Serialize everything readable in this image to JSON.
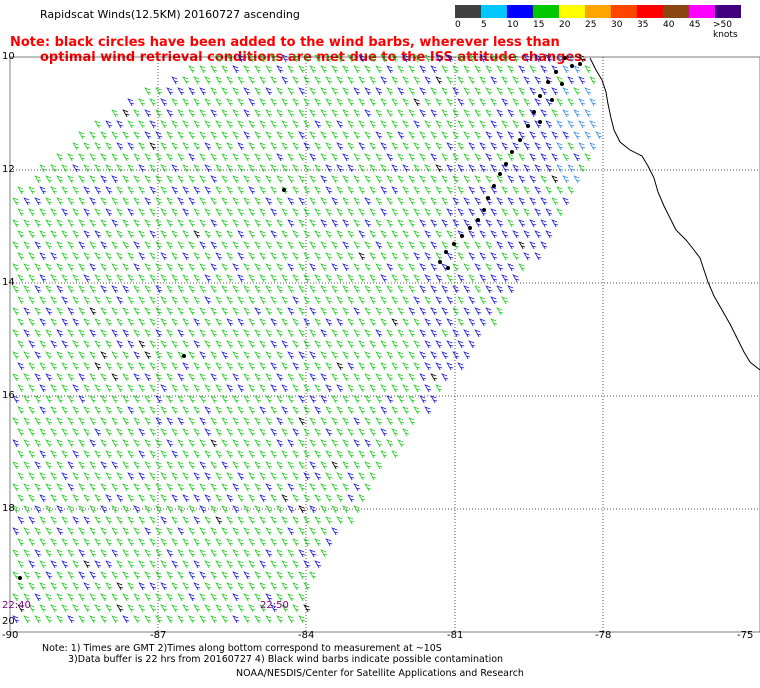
{
  "title": "Rapidscat Winds(12.5KM) 20160727 ascending",
  "note_line1": "Note: black circles have been added to the wind barbs, wherever less than",
  "note_line2": "optimal wind retrieval conditions are met due to the ISS attitude changes.",
  "legend": {
    "labels": [
      "0",
      "5",
      "10",
      "15",
      "20",
      "25",
      "30",
      "35",
      "40",
      "45",
      ">50 knots"
    ],
    "colors": [
      "#404040",
      "#00c8ff",
      "#0000ff",
      "#00c800",
      "#ffff00",
      "#ffa500",
      "#ff4500",
      "#ff0000",
      "#8b4513",
      "#ff00ff",
      "#400080"
    ]
  },
  "y_labels": [
    "10",
    "12",
    "14",
    "16",
    "18",
    "20"
  ],
  "x_labels": [
    "-90",
    "-87",
    "-84",
    "-81",
    "-78",
    "-75"
  ],
  "times": [
    "22:40",
    "22:50"
  ],
  "footer": {
    "line1": "Note: 1) Times are GMT 2)Times along bottom correspond to measurement at ~10S",
    "line2": "3)Data buffer is 22 hrs from 20160727 4) Black wind barbs indicate possible contamination"
  },
  "credit": "NOAA/NESDIS/Center for Satellite Applications and Research",
  "colors": {
    "barb_green": "#22cc22",
    "barb_blue": "#1a1adc",
    "barb_lightblue": "#3a8ef0",
    "barb_black": "#000000",
    "note_red": "#ff0000",
    "time_purple": "#800080"
  }
}
